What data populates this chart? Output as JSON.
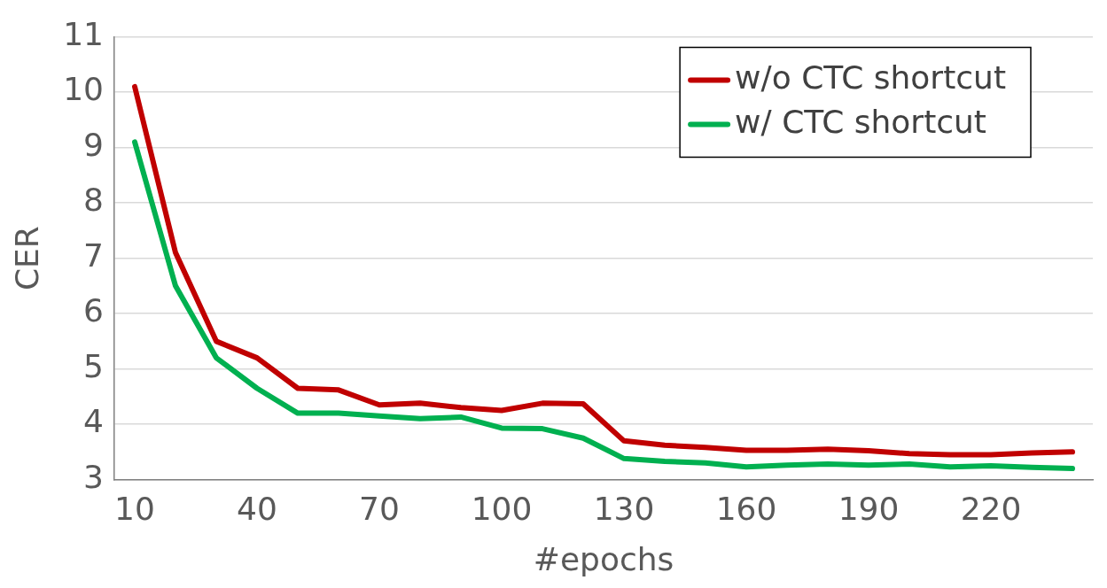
{
  "chart_data": {
    "type": "line",
    "xlabel": "#epochs",
    "ylabel": "CER",
    "categories": [
      "10",
      null,
      null,
      "40",
      null,
      null,
      "70",
      null,
      null,
      "100",
      null,
      null,
      "130",
      null,
      null,
      "160",
      null,
      null,
      "190",
      null,
      null,
      "220",
      null,
      null
    ],
    "series": [
      {
        "name": "w/o CTC shortcut",
        "color": "#c00000",
        "values": [
          10.1,
          7.1,
          5.5,
          5.2,
          4.65,
          4.62,
          4.35,
          4.38,
          4.3,
          4.25,
          4.38,
          4.37,
          3.7,
          3.62,
          3.58,
          3.53,
          3.53,
          3.55,
          3.52,
          3.47,
          3.45,
          3.45,
          3.48,
          3.5
        ]
      },
      {
        "name": "w/ CTC shortcut",
        "color": "#00b050",
        "values": [
          9.1,
          6.5,
          5.2,
          4.65,
          4.2,
          4.2,
          4.15,
          4.1,
          4.13,
          3.93,
          3.92,
          3.75,
          3.38,
          3.33,
          3.3,
          3.23,
          3.26,
          3.28,
          3.26,
          3.28,
          3.23,
          3.25,
          3.22,
          3.2
        ]
      }
    ],
    "ylim": [
      3,
      11
    ],
    "yticks": [
      3,
      4,
      5,
      6,
      7,
      8,
      9,
      10,
      11
    ],
    "grid": "y",
    "legend": "top right",
    "marker": "none",
    "line_style": "solid"
  }
}
